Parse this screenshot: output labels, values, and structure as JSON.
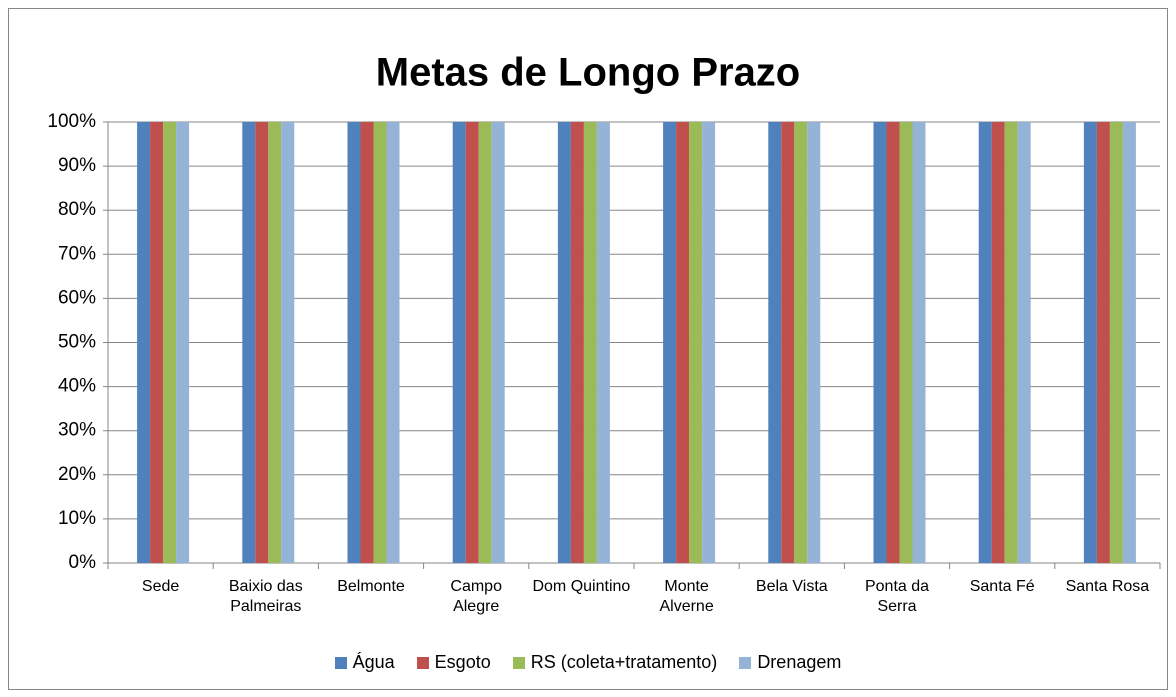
{
  "chart_data": {
    "type": "bar",
    "title": "Metas de Longo Prazo",
    "categories": [
      "Sede",
      "Baixio das Palmeiras",
      "Belmonte",
      "Campo Alegre",
      "Dom Quintino",
      "Monte Alverne",
      "Bela Vista",
      "Ponta da Serra",
      "Santa Fé",
      "Santa Rosa"
    ],
    "series": [
      {
        "name": "Água",
        "color": "#4f81bd",
        "values": [
          100,
          100,
          100,
          100,
          100,
          100,
          100,
          100,
          100,
          100
        ]
      },
      {
        "name": "Esgoto",
        "color": "#c0504d",
        "values": [
          100,
          100,
          100,
          100,
          100,
          100,
          100,
          100,
          100,
          100
        ]
      },
      {
        "name": "RS (coleta+tratamento)",
        "color": "#9bbb59",
        "values": [
          100,
          100,
          100,
          100,
          100,
          100,
          100,
          100,
          100,
          100
        ]
      },
      {
        "name": "Drenagem",
        "color": "#95b3d7",
        "values": [
          100,
          100,
          100,
          100,
          100,
          100,
          100,
          100,
          100,
          100
        ]
      }
    ],
    "ylim": [
      0,
      100
    ],
    "yticks": [
      {
        "value": 0,
        "label": "0%"
      },
      {
        "value": 10,
        "label": "10%"
      },
      {
        "value": 20,
        "label": "20%"
      },
      {
        "value": 30,
        "label": "30%"
      },
      {
        "value": 40,
        "label": "40%"
      },
      {
        "value": 50,
        "label": "50%"
      },
      {
        "value": 60,
        "label": "60%"
      },
      {
        "value": 70,
        "label": "70%"
      },
      {
        "value": 80,
        "label": "80%"
      },
      {
        "value": 90,
        "label": "90%"
      },
      {
        "value": 100,
        "label": "100%"
      }
    ],
    "grid": true,
    "legend": "bottom"
  }
}
